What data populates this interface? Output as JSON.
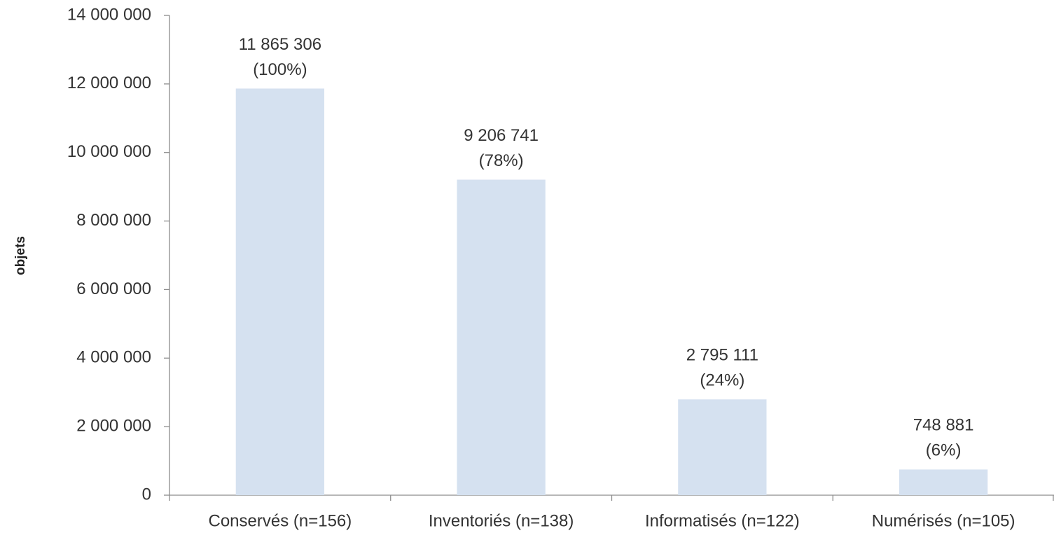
{
  "chart_data": {
    "type": "bar",
    "y_label": "objets",
    "categories": [
      "Conservés (n=156)",
      "Inventoriés (n=138)",
      "Informatisés (n=122)",
      "Numérisés (n=105)"
    ],
    "values": [
      11865306,
      9206741,
      2795111,
      748881
    ],
    "value_labels": [
      "11 865 306",
      "9 206 741",
      "2 795 111",
      "748 881"
    ],
    "shares": [
      100,
      78,
      24,
      6
    ],
    "share_labels": [
      "(100%)",
      "(78%)",
      "(24%)",
      "(6%)"
    ],
    "color": "#d5e1f0",
    "ylim": [
      0,
      14000000
    ],
    "yticks": [
      0,
      {
        "value": 2000000,
        "label": "2 000 000"
      },
      {
        "value": 4000000,
        "label": "4 000 000"
      },
      {
        "value": 6000000,
        "label": "6 000 000"
      },
      {
        "value": 8000000,
        "label": "8 000 000"
      },
      {
        "value": 10000000,
        "label": "10 000 000"
      },
      {
        "value": 12000000,
        "label": "12 000 000"
      },
      {
        "value": 14000000,
        "label": "14 000 000"
      }
    ],
    "grid": false
  }
}
